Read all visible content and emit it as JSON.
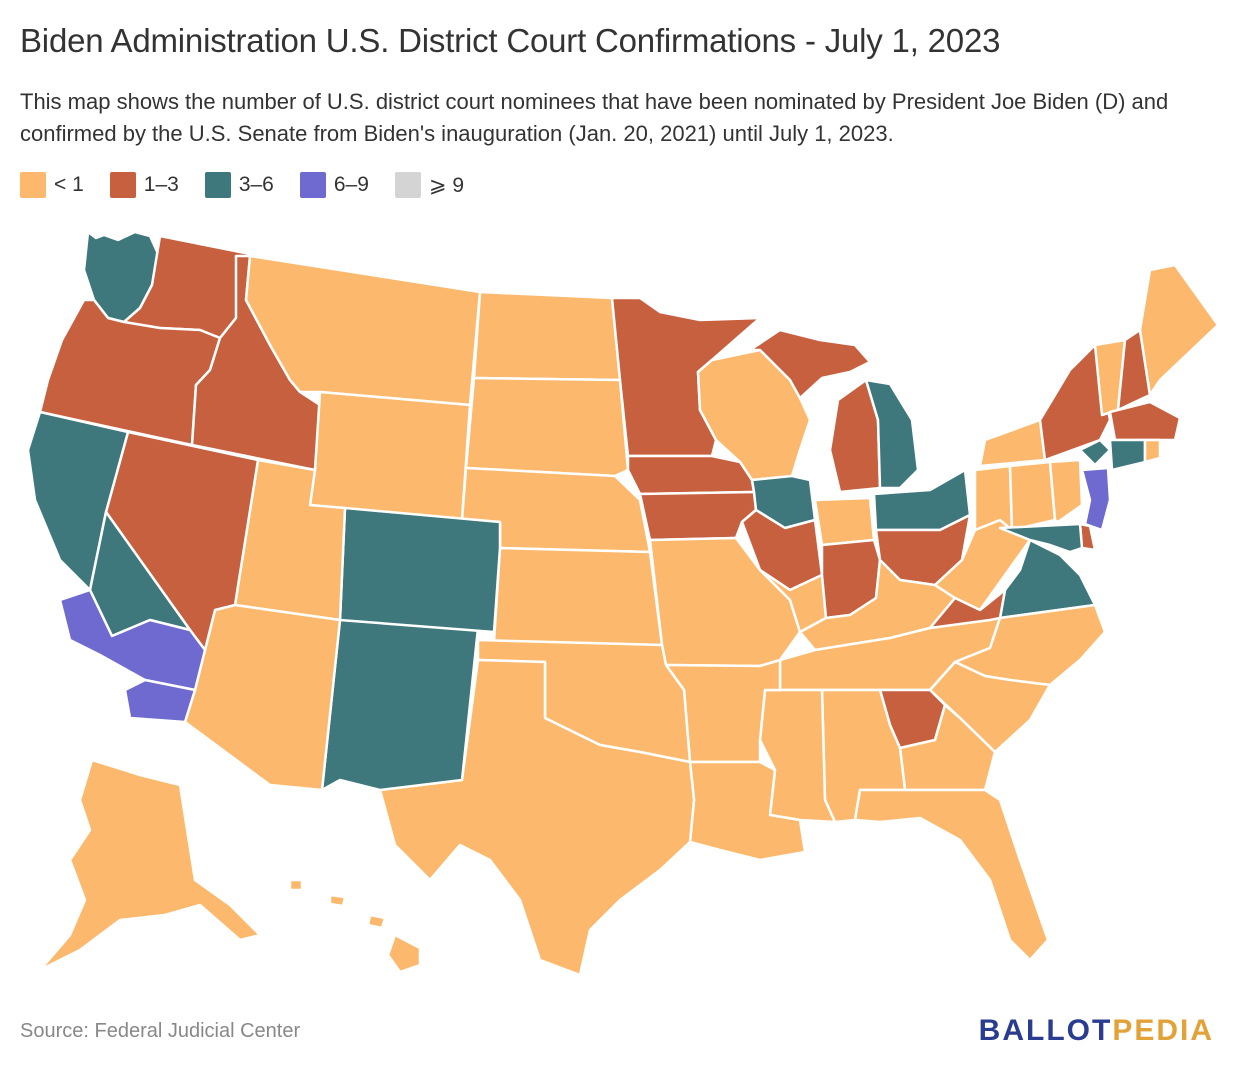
{
  "title": "Biden Administration U.S. District Court Confirmations - July 1, 2023",
  "subtitle": "This map shows the number of U.S. district court nominees that have been nominated by President Joe Biden (D) and confirmed by the U.S. Senate from Biden's inauguration (Jan. 20, 2021) until July 1, 2023.",
  "legend": [
    {
      "label": "< 1",
      "color": "#fcb96d"
    },
    {
      "label": "1–3",
      "color": "#c7603f"
    },
    {
      "label": "3–6",
      "color": "#3e787c"
    },
    {
      "label": "6–9",
      "color": "#6f6ad0"
    },
    {
      "label": "⩾ 9",
      "color": "#d4d4d4"
    }
  ],
  "colors": {
    "lt1": "#fcb96d",
    "c1to3": "#c7603f",
    "c3to6": "#3e787c",
    "c6to9": "#6f6ad0",
    "ge9": "#d4d4d4",
    "border": "#ffffff"
  },
  "source": "Source: Federal Judicial Center",
  "logo": {
    "part1": "BALLOT",
    "part2": "PEDIA"
  }
}
